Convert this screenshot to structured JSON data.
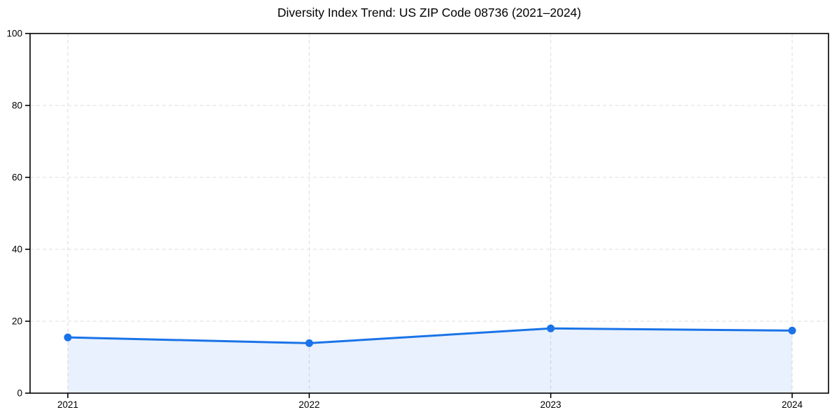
{
  "chart_data": {
    "type": "line",
    "title": "Diversity Index Trend: US ZIP Code 08736 (2021–2024)",
    "x": [
      2021,
      2022,
      2023,
      2024
    ],
    "series": [
      {
        "name": "Diversity Index",
        "values": [
          15.5,
          13.9,
          18.0,
          17.4
        ]
      }
    ],
    "xlabel": "",
    "ylabel": "",
    "ylim": [
      0,
      100
    ],
    "yticks": [
      0,
      20,
      40,
      60,
      80,
      100
    ],
    "grid": true,
    "grid_style": "dashed",
    "legend": false,
    "marker": "circle",
    "area_fill": true,
    "colors": {
      "line": "#1a73e8",
      "fill": "#1a73e8",
      "fill_opacity": 0.1,
      "axis": "#000000",
      "grid": "#dedede",
      "tick_text": "#000000",
      "background": "#ffffff"
    }
  }
}
